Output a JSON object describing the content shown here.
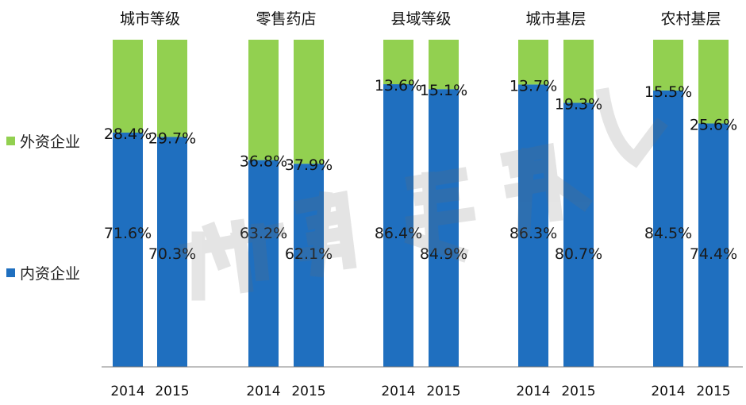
{
  "chart_data": {
    "type": "bar",
    "stacked": true,
    "groups": [
      "城市等级",
      "零售药店",
      "县域等级",
      "城市基层",
      "农村基层"
    ],
    "years": [
      "2014",
      "2015"
    ],
    "series": [
      {
        "name": "内资企业",
        "color": "#1f6fbf",
        "values": [
          [
            71.6,
            70.3
          ],
          [
            63.2,
            62.1
          ],
          [
            86.4,
            84.9
          ],
          [
            86.3,
            80.7
          ],
          [
            84.5,
            74.4
          ]
        ],
        "labels": [
          [
            "71.6%",
            "70.3%"
          ],
          [
            "63.2%",
            "62.1%"
          ],
          [
            "86.4%",
            "84.9%"
          ],
          [
            "86.3%",
            "80.7%"
          ],
          [
            "84.5%",
            "74.4%"
          ]
        ]
      },
      {
        "name": "外资企业",
        "color": "#92d050",
        "values": [
          [
            28.4,
            29.7
          ],
          [
            36.8,
            37.9
          ],
          [
            13.6,
            15.1
          ],
          [
            13.7,
            19.3
          ],
          [
            15.5,
            25.6
          ]
        ],
        "labels": [
          [
            "28.4%",
            "29.7%"
          ],
          [
            "36.8%",
            "37.9%"
          ],
          [
            "13.6%",
            "15.1%"
          ],
          [
            "13.7%",
            "19.3%"
          ],
          [
            "15.5%",
            "25.6%"
          ]
        ]
      }
    ],
    "ylim": [
      0,
      100
    ],
    "grid": false,
    "legend_position": "left"
  },
  "watermark": "新康界"
}
